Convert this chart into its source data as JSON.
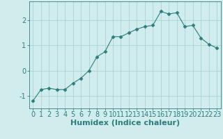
{
  "x": [
    0,
    1,
    2,
    3,
    4,
    5,
    6,
    7,
    8,
    9,
    10,
    11,
    12,
    13,
    14,
    15,
    16,
    17,
    18,
    19,
    20,
    21,
    22,
    23
  ],
  "y": [
    -1.2,
    -0.75,
    -0.7,
    -0.75,
    -0.75,
    -0.5,
    -0.3,
    0.0,
    0.55,
    0.75,
    1.35,
    1.35,
    1.5,
    1.65,
    1.75,
    1.8,
    2.35,
    2.25,
    2.3,
    1.75,
    1.8,
    1.3,
    1.05,
    0.9
  ],
  "title": "",
  "xlabel": "Humidex (Indice chaleur)",
  "ylabel": "",
  "xlim": [
    -0.5,
    23.5
  ],
  "ylim": [
    -1.5,
    2.75
  ],
  "yticks": [
    -1,
    0,
    1,
    2
  ],
  "xticks": [
    0,
    1,
    2,
    3,
    4,
    5,
    6,
    7,
    8,
    9,
    10,
    11,
    12,
    13,
    14,
    15,
    16,
    17,
    18,
    19,
    20,
    21,
    22,
    23
  ],
  "line_color": "#2d7d7d",
  "marker_color": "#2d7d7d",
  "bg_color": "#d0ecec",
  "grid_color": "#a8d4d4",
  "axis_color": "#2d7d7d",
  "xlabel_fontsize": 8,
  "tick_fontsize": 7,
  "marker": "D",
  "markersize": 2.5
}
